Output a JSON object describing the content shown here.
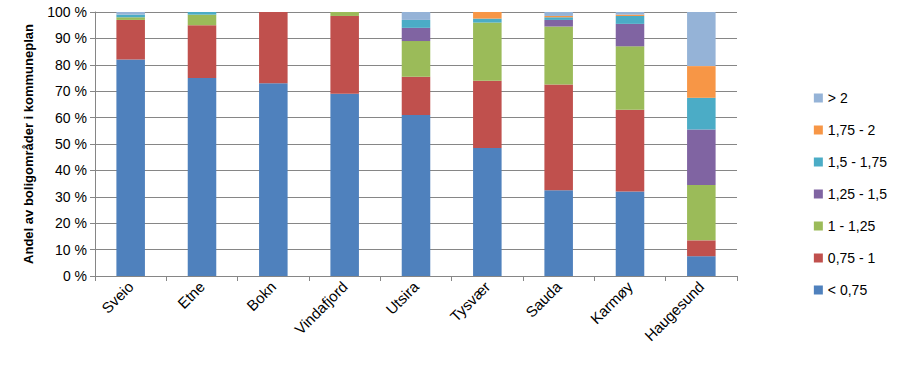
{
  "chart_data": {
    "type": "bar",
    "stacked": true,
    "y_label": "Andel av boligområder i kommuneplan",
    "categories": [
      "Sveio",
      "Etne",
      "Bokn",
      "Vindafjord",
      "Utsira",
      "Tysvær",
      "Sauda",
      "Karmøy",
      "Haugesund"
    ],
    "series": [
      {
        "name": "< 0,75",
        "color": "#4F81BD",
        "values": [
          82,
          75,
          73,
          69,
          61,
          48.5,
          32.5,
          32,
          7.5
        ]
      },
      {
        "name": "0,75 - 1",
        "color": "#C0504D",
        "values": [
          15,
          20,
          27,
          29.5,
          14.5,
          25.5,
          40,
          31,
          6
        ]
      },
      {
        "name": "1 - 1,25",
        "color": "#9BBB59",
        "values": [
          1,
          4,
          0,
          1.5,
          13.5,
          22,
          22,
          24,
          21
        ]
      },
      {
        "name": "1,25 - 1,5",
        "color": "#8064A2",
        "values": [
          0,
          0,
          0,
          0,
          5,
          0,
          2.5,
          8.5,
          21
        ]
      },
      {
        "name": "1,5 - 1,75",
        "color": "#4BACC6",
        "values": [
          1,
          1,
          0,
          0,
          3,
          1.5,
          1,
          3,
          12
        ]
      },
      {
        "name": "1,75 - 2",
        "color": "#F79646",
        "values": [
          0,
          0,
          0,
          0,
          0,
          2.5,
          0.5,
          0.5,
          12
        ]
      },
      {
        "name": "> 2",
        "color": "#95B3D7",
        "values": [
          1,
          0,
          0,
          0,
          3,
          0,
          1.5,
          1,
          20.5
        ]
      }
    ],
    "ylim": [
      0,
      100
    ],
    "yticks": [
      {
        "value": 0,
        "label": "0 %"
      },
      {
        "value": 10,
        "label": "10 %"
      },
      {
        "value": 20,
        "label": "20 %"
      },
      {
        "value": 30,
        "label": "30 %"
      },
      {
        "value": 40,
        "label": "40 %"
      },
      {
        "value": 50,
        "label": "50 %"
      },
      {
        "value": 60,
        "label": "60 %"
      },
      {
        "value": 70,
        "label": "70 %"
      },
      {
        "value": 80,
        "label": "80 %"
      },
      {
        "value": 90,
        "label": "90 %"
      },
      {
        "value": 100,
        "label": "100 %"
      }
    ],
    "grid": true,
    "legend": "right"
  }
}
